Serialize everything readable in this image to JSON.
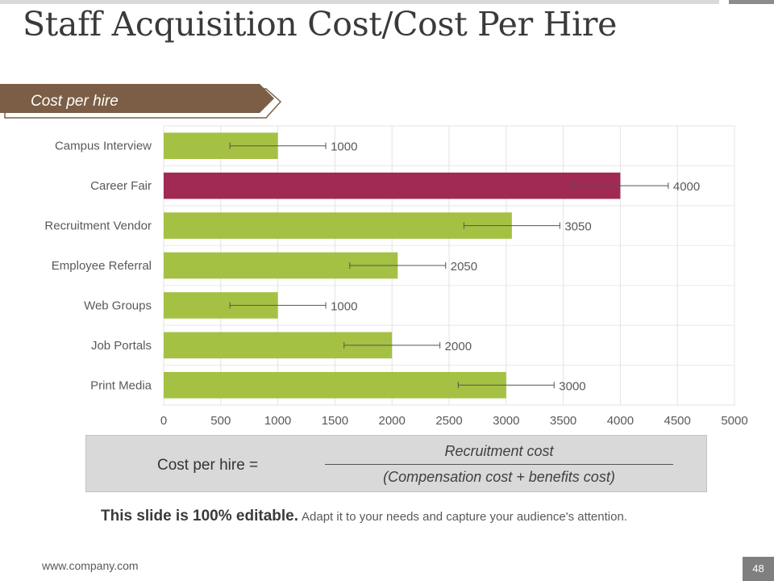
{
  "slide": {
    "title": "Staff Acquisition Cost/Cost Per Hire",
    "section_label": "Cost per hire",
    "formula": {
      "lhs": "Cost per hire =",
      "numerator": "Recruitment cost",
      "denominator": "(Compensation cost + benefits cost)"
    },
    "note": {
      "bold": "This slide is 100% editable.",
      "rest": "Adapt it to your needs and capture your audience's attention."
    },
    "footer": {
      "url": "www.company.com",
      "page": "48"
    },
    "colors": {
      "banner": "#7b5e45",
      "bar": "#a4c143",
      "highlight_bar": "#a02a53",
      "formula_bg": "#d9d9d9"
    }
  },
  "chart_data": {
    "type": "bar",
    "orientation": "horizontal",
    "categories": [
      "Campus Interview",
      "Career Fair",
      "Recruitment Vendor",
      "Employee Referral",
      "Web Groups",
      "Job Portals",
      "Print Media"
    ],
    "values": [
      1000,
      4000,
      3050,
      2050,
      1000,
      2000,
      3000
    ],
    "data_labels": [
      "1000",
      "4000",
      "3050",
      "2050",
      "1000",
      "2000",
      "3000"
    ],
    "highlight_index": 1,
    "error_bars": [
      {
        "low": 580,
        "high": 1420
      },
      {
        "low": 3580,
        "high": 4420
      },
      {
        "low": 2630,
        "high": 3470
      },
      {
        "low": 1630,
        "high": 2470
      },
      {
        "low": 580,
        "high": 1420
      },
      {
        "low": 1580,
        "high": 2420
      },
      {
        "low": 2580,
        "high": 3420
      }
    ],
    "xlim": [
      0,
      5000
    ],
    "xticks": [
      0,
      500,
      1000,
      1500,
      2000,
      2500,
      3000,
      3500,
      4000,
      4500,
      5000
    ],
    "grid": true,
    "legend": "none"
  }
}
